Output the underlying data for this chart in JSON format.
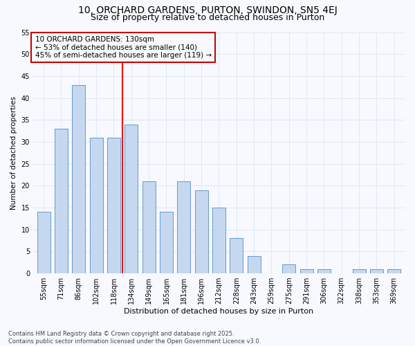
{
  "title1": "10, ORCHARD GARDENS, PURTON, SWINDON, SN5 4EJ",
  "title2": "Size of property relative to detached houses in Purton",
  "xlabel": "Distribution of detached houses by size in Purton",
  "ylabel": "Number of detached properties",
  "categories": [
    "55sqm",
    "71sqm",
    "86sqm",
    "102sqm",
    "118sqm",
    "134sqm",
    "149sqm",
    "165sqm",
    "181sqm",
    "196sqm",
    "212sqm",
    "228sqm",
    "243sqm",
    "259sqm",
    "275sqm",
    "291sqm",
    "306sqm",
    "322sqm",
    "338sqm",
    "353sqm",
    "369sqm"
  ],
  "values": [
    14,
    33,
    43,
    31,
    31,
    34,
    21,
    14,
    21,
    19,
    15,
    8,
    4,
    0,
    2,
    1,
    1,
    0,
    1,
    1,
    1
  ],
  "bar_color": "#c5d8f0",
  "bar_edge_color": "#6699cc",
  "ref_line_x": 4.5,
  "reference_line_label": "10 ORCHARD GARDENS: 130sqm",
  "annotation_line1": "← 53% of detached houses are smaller (140)",
  "annotation_line2": "45% of semi-detached houses are larger (119) →",
  "annotation_box_color": "#cc0000",
  "ylim": [
    0,
    55
  ],
  "yticks": [
    0,
    5,
    10,
    15,
    20,
    25,
    30,
    35,
    40,
    45,
    50,
    55
  ],
  "footnote": "Contains HM Land Registry data © Crown copyright and database right 2025.\nContains public sector information licensed under the Open Government Licence v3.0.",
  "background_color": "#f7f9ff",
  "grid_color": "#dde8f8",
  "title1_fontsize": 10,
  "title2_fontsize": 9,
  "xlabel_fontsize": 8,
  "ylabel_fontsize": 7.5,
  "tick_fontsize": 7,
  "annotation_fontsize": 7.5,
  "footnote_fontsize": 6
}
